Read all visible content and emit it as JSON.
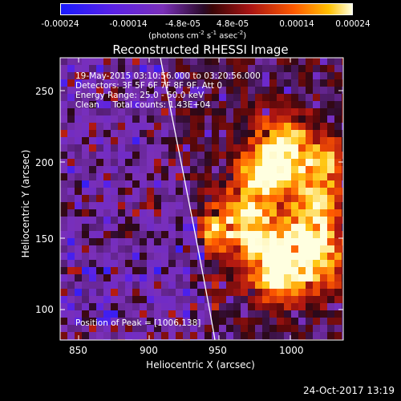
{
  "colorbar": {
    "ticks": [
      "-0.00024",
      "-0.00014",
      "-4.8e-05",
      "4.8e-05",
      "0.00014",
      "0.00024"
    ],
    "unit_main": "(photons cm",
    "unit_exp1": "-2",
    "unit_s": " s",
    "unit_exp2": "-1",
    "unit_asec": " asec",
    "unit_exp3": "-2",
    "unit_close": ")"
  },
  "title": "Reconstructed RHESSI Image",
  "annotations": {
    "time_range": "19-May-2015 03:10:56.000 to 03:20:56.000",
    "detectors": "Detectors: 3F 5F 6F 7F 8F 9F, Att 0",
    "energy": "Energy Range: 25.0 - 50.0 keV",
    "algorithm": "Clean     Total counts: 1.43E+04",
    "peak": "Position of Peak = [1006,138]"
  },
  "axes": {
    "xlabel": "Heliocentric X (arcsec)",
    "ylabel": "Heliocentric Y (arcsec)",
    "xticks": [
      "850",
      "900",
      "950",
      "1000"
    ],
    "yticks": [
      "250",
      "200",
      "150",
      "100"
    ]
  },
  "datestamp": "24-Oct-2017 13:19",
  "colors": {
    "negative": "#1a1aff",
    "background": "#5a2a9a",
    "zero": "#2a0a28",
    "positive": "#ff5a00",
    "peak": "#ffffe0"
  }
}
